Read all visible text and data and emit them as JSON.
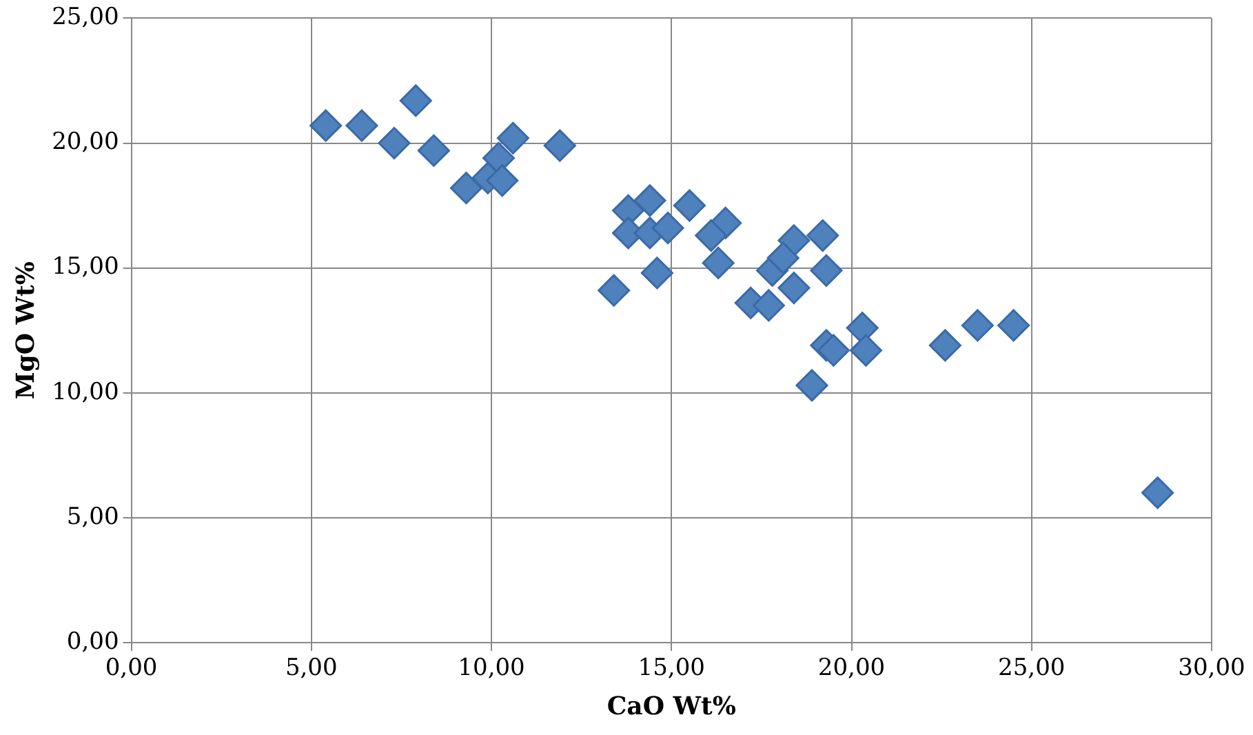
{
  "chart_data": {
    "type": "scatter",
    "xlabel": "CaO Wt%",
    "ylabel": "MgO Wt%",
    "x": [
      5.4,
      6.4,
      7.3,
      7.9,
      8.4,
      9.3,
      9.9,
      10.2,
      10.3,
      10.6,
      11.9,
      13.8,
      14.4,
      15.5,
      13.8,
      14.4,
      14.9,
      16.5,
      16.1,
      16.3,
      13.4,
      14.6,
      18.4,
      19.2,
      17.8,
      19.3,
      18.4,
      17.2,
      17.7,
      18.1,
      19.3,
      19.5,
      20.3,
      20.4,
      18.9,
      22.6,
      23.5,
      24.5,
      28.5
    ],
    "values": [
      20.7,
      20.7,
      20.0,
      21.7,
      19.7,
      18.2,
      18.6,
      19.4,
      18.5,
      20.2,
      19.9,
      17.3,
      17.7,
      17.5,
      16.4,
      16.4,
      16.6,
      16.8,
      16.3,
      15.2,
      14.1,
      14.8,
      16.1,
      16.3,
      14.9,
      14.9,
      14.2,
      13.6,
      13.5,
      15.4,
      11.9,
      11.7,
      12.6,
      11.7,
      10.3,
      11.9,
      12.7,
      12.7,
      6.0
    ],
    "color": "#4f81bd",
    "marker": "diamond",
    "xlim": [
      0,
      30
    ],
    "xticks": [
      {
        "value": 0,
        "label": "0,00"
      },
      {
        "value": 5,
        "label": "5,00"
      },
      {
        "value": 10,
        "label": "10,00"
      },
      {
        "value": 15,
        "label": "15,00"
      },
      {
        "value": 20,
        "label": "20,00"
      },
      {
        "value": 25,
        "label": "25,00"
      },
      {
        "value": 30,
        "label": "30,00"
      }
    ],
    "ylim": [
      0,
      25
    ],
    "yticks": [
      {
        "value": 0,
        "label": "0,00"
      },
      {
        "value": 5,
        "label": "5,00"
      },
      {
        "value": 10,
        "label": "10,00"
      },
      {
        "value": 15,
        "label": "15,00"
      },
      {
        "value": 20,
        "label": "20,00"
      },
      {
        "value": 25,
        "label": "25,00"
      }
    ],
    "grid": true,
    "legend": false
  }
}
